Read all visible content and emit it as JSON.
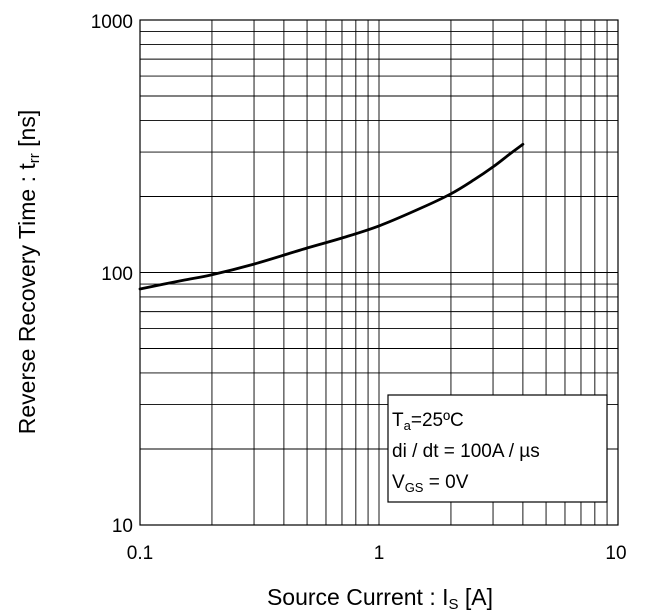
{
  "chart_data": {
    "type": "line",
    "x_scale": "log",
    "y_scale": "log",
    "xlim": [
      0.1,
      10
    ],
    "ylim": [
      10,
      1000
    ],
    "x_ticks": [
      "0.1",
      "1",
      "10"
    ],
    "y_ticks": [
      "10",
      "100",
      "1000"
    ],
    "grid": true,
    "xlabel": {
      "text": "Source Current : I",
      "sub": "S",
      "unit": " [A]"
    },
    "ylabel": {
      "text": "Reverse Recovery Time : t",
      "sub": "rr",
      "unit": " [ns]"
    },
    "series": [
      {
        "x": [
          0.1,
          0.15,
          0.2,
          0.3,
          0.5,
          0.7,
          1.0,
          1.5,
          2.0,
          2.5,
          3.0,
          3.5,
          4.0
        ],
        "y": [
          86,
          93,
          98,
          108,
          125,
          137,
          153,
          180,
          205,
          233,
          262,
          293,
          322
        ]
      }
    ],
    "annotation": {
      "line1": {
        "main": "T",
        "sub": "a",
        "rest": "=25ºC"
      },
      "line2": "di / dt = 100A / µs",
      "line3": {
        "main": "V",
        "sub": "GS",
        "rest": " = 0V"
      }
    }
  }
}
